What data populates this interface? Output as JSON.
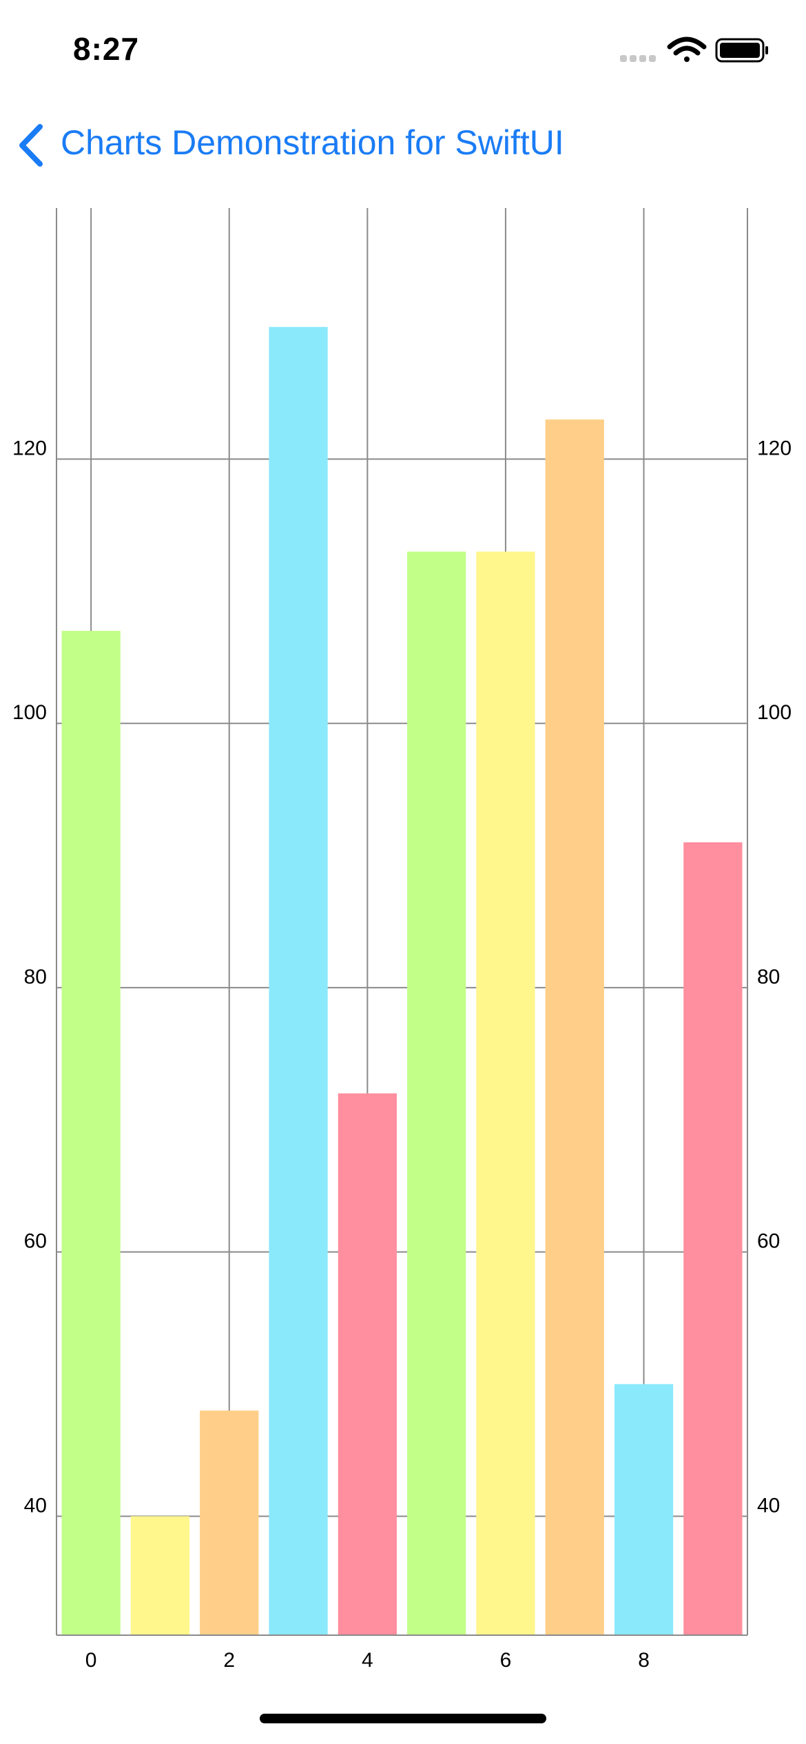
{
  "status_bar": {
    "time": "8:27",
    "icons": [
      "cellular-signal-icon",
      "wifi-icon",
      "battery-icon"
    ]
  },
  "nav": {
    "back_icon": "chevron-left-icon",
    "title": "Charts Demonstration for SwiftUI",
    "accent_color": "#1a7cf5"
  },
  "chart_data": {
    "type": "bar",
    "title": "",
    "xlabel": "",
    "ylabel": "",
    "x": [
      0,
      1,
      2,
      3,
      4,
      5,
      6,
      7,
      8,
      9
    ],
    "values": [
      107,
      40,
      48,
      130,
      72,
      113,
      113,
      123,
      50,
      91
    ],
    "colors": [
      "#c2ff88",
      "#fff68c",
      "#ffcf8a",
      "#8ae9fb",
      "#ff8e9e",
      "#c2ff88",
      "#fff68c",
      "#ffcf8a",
      "#8ae9fb",
      "#ff8e9e"
    ],
    "x_ticks": [
      0,
      2,
      4,
      6,
      8
    ],
    "x_tick_labels": [
      "0",
      "2",
      "4",
      "6",
      "8"
    ],
    "y_ticks": [
      40,
      60,
      80,
      100,
      120
    ],
    "y_tick_labels": [
      "40",
      "60",
      "80",
      "100",
      "120"
    ],
    "xlim": [
      -0.5,
      9.5
    ],
    "ylim": [
      31,
      139
    ],
    "y_axis_both_sides": true,
    "grid": true,
    "legend": "none"
  }
}
